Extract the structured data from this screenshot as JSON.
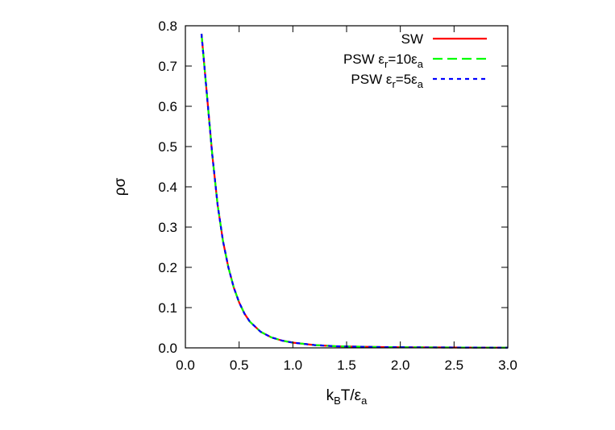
{
  "chart_data": {
    "type": "line",
    "title": "",
    "xlabel": "k_BT/ε_a",
    "ylabel": "ρσ",
    "xlim": [
      0.0,
      3.0
    ],
    "ylim": [
      0.0,
      0.8
    ],
    "x_ticks": [
      "0.0",
      "0.5",
      "1.0",
      "1.5",
      "2.0",
      "2.5",
      "3.0"
    ],
    "y_ticks": [
      "0.0",
      "0.1",
      "0.2",
      "0.3",
      "0.4",
      "0.5",
      "0.6",
      "0.7",
      "0.8"
    ],
    "grid": false,
    "legend_position": "top-right",
    "series": [
      {
        "name": "SW",
        "color": "#ff0000",
        "dash": "solid",
        "x": [
          0.15,
          0.2,
          0.25,
          0.3,
          0.35,
          0.4,
          0.45,
          0.5,
          0.55,
          0.6,
          0.7,
          0.8,
          0.9,
          1.0,
          1.2,
          1.4,
          1.6,
          1.8,
          2.0,
          2.2,
          2.4,
          2.6,
          2.8,
          3.0
        ],
        "y": [
          0.78,
          0.63,
          0.48,
          0.355,
          0.265,
          0.2,
          0.15,
          0.113,
          0.085,
          0.065,
          0.04,
          0.026,
          0.018,
          0.013,
          0.007,
          0.004,
          0.003,
          0.002,
          0.0015,
          0.0012,
          0.001,
          0.0008,
          0.0006,
          0.0005
        ]
      },
      {
        "name": "PSW ε_r=10ε_a",
        "color": "#00ff00",
        "dash": "long",
        "x": [
          0.15,
          0.2,
          0.25,
          0.3,
          0.35,
          0.4,
          0.45,
          0.5,
          0.55,
          0.6,
          0.7,
          0.8,
          0.9,
          1.0,
          1.2,
          1.4,
          1.6,
          1.8,
          2.0,
          2.2,
          2.4,
          2.6,
          2.8,
          3.0
        ],
        "y": [
          0.78,
          0.63,
          0.48,
          0.355,
          0.265,
          0.2,
          0.15,
          0.113,
          0.085,
          0.065,
          0.04,
          0.026,
          0.018,
          0.013,
          0.007,
          0.004,
          0.003,
          0.002,
          0.0015,
          0.0012,
          0.001,
          0.0008,
          0.0006,
          0.0005
        ]
      },
      {
        "name": "PSW ε_r=5ε_a",
        "color": "#0000ff",
        "dash": "short",
        "x": [
          0.15,
          0.2,
          0.25,
          0.3,
          0.35,
          0.4,
          0.45,
          0.5,
          0.55,
          0.6,
          0.7,
          0.8,
          0.9,
          1.0,
          1.2,
          1.4,
          1.6,
          1.8,
          2.0,
          2.2,
          2.4,
          2.6,
          2.8,
          3.0
        ],
        "y": [
          0.78,
          0.63,
          0.48,
          0.355,
          0.265,
          0.2,
          0.15,
          0.113,
          0.085,
          0.065,
          0.04,
          0.026,
          0.018,
          0.013,
          0.007,
          0.004,
          0.003,
          0.002,
          0.0015,
          0.0012,
          0.001,
          0.0008,
          0.0006,
          0.0005
        ]
      }
    ]
  }
}
